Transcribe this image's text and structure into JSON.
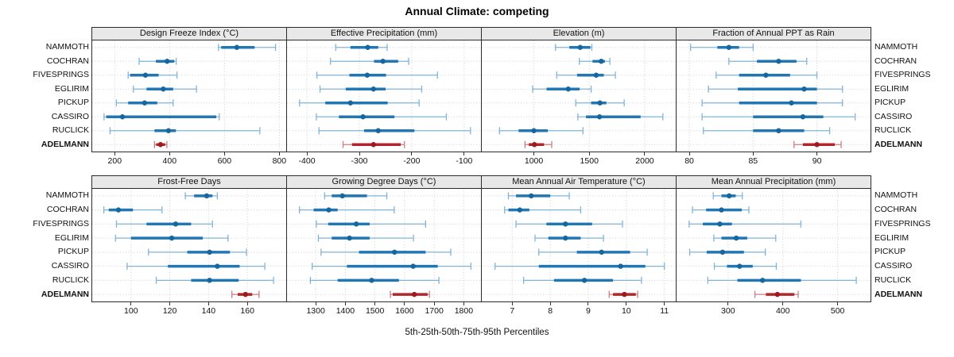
{
  "title": "Annual Climate: competing",
  "xlabel": "5th-25th-50th-75th-95th Percentiles",
  "sites": [
    "NAMMOTH",
    "COCHRAN",
    "FIVESPRINGS",
    "EGLIRIM",
    "PICKUP",
    "CASSIRO",
    "RUCLICK",
    "ADELMANN"
  ],
  "highlight_site": "ADELMANN",
  "colors": {
    "median": "#15679e",
    "box": "#2077b4",
    "whisker": "#82b4d8",
    "highlight_median": "#9d1a1f",
    "highlight_box": "#b2262b",
    "highlight_whisker": "#cd7d80",
    "grid_vertical": "#cfcfcf",
    "grid_horizontal": "#c3d3de",
    "panel_border": "#2b2b2b",
    "strip_background": "#e8e8e8"
  },
  "chart_data": {
    "type": "dotplot-percentile-intervals",
    "percentile_levels": [
      5,
      25,
      50,
      75,
      95
    ],
    "grid": "dotted",
    "legend_position": "none",
    "note": "values per site are [p5,p25,p50,p75,p95]; sites ordered top-to-bottom as in sites[]",
    "panels": [
      {
        "title": "Design Freeze Index (°C)",
        "row": 0,
        "col": 0,
        "xlim": [
          118,
          825
        ],
        "ticks": [
          200,
          400,
          600,
          800
        ],
        "values": [
          [
            578,
            588,
            645,
            710,
            786
          ],
          [
            289,
            350,
            391,
            417,
            424
          ],
          [
            249,
            256,
            312,
            360,
            427
          ],
          [
            268,
            316,
            377,
            413,
            498
          ],
          [
            206,
            249,
            309,
            355,
            413
          ],
          [
            161,
            169,
            228,
            570,
            581
          ],
          [
            183,
            345,
            396,
            423,
            729
          ],
          [
            345,
            351,
            367,
            384,
            390
          ]
        ]
      },
      {
        "title": "Effective Precipitation (mm)",
        "row": 0,
        "col": 1,
        "xlim": [
          -438,
          -68
        ],
        "ticks": [
          -400,
          -300,
          -200,
          -100
        ],
        "values": [
          [
            -345,
            -317,
            -284,
            -264,
            -247
          ],
          [
            -355,
            -272,
            -255,
            -226,
            -206
          ],
          [
            -381,
            -319,
            -285,
            -249,
            -151
          ],
          [
            -375,
            -326,
            -273,
            -250,
            -181
          ],
          [
            -414,
            -365,
            -317,
            -246,
            -186
          ],
          [
            -382,
            -339,
            -293,
            -233,
            -134
          ],
          [
            -377,
            -291,
            -264,
            -195,
            -88
          ],
          [
            -331,
            -314,
            -273,
            -221,
            -214
          ]
        ]
      },
      {
        "title": "Elevation (m)",
        "row": 0,
        "col": 2,
        "xlim": [
          530,
          2280
        ],
        "ticks": [
          1000,
          1500,
          2000
        ],
        "values": [
          [
            1195,
            1320,
            1418,
            1510,
            1523
          ],
          [
            1410,
            1529,
            1608,
            1641,
            1686
          ],
          [
            1206,
            1390,
            1562,
            1631,
            1735
          ],
          [
            989,
            1115,
            1310,
            1413,
            1517
          ],
          [
            1378,
            1516,
            1596,
            1654,
            1815
          ],
          [
            1397,
            1470,
            1592,
            1963,
            2164
          ],
          [
            690,
            862,
            1000,
            1126,
            1443
          ],
          [
            920,
            954,
            1005,
            1092,
            1161
          ]
        ]
      },
      {
        "title": "Fraction of Annual PPT as Rain",
        "row": 0,
        "col": 3,
        "xlim": [
          79,
          94.2
        ],
        "ticks": [
          80,
          85,
          90
        ],
        "values": [
          [
            80.1,
            82.2,
            83.1,
            83.9,
            85.0
          ],
          [
            83.1,
            85.3,
            87.0,
            88.4,
            89.2
          ],
          [
            82.1,
            83.9,
            86.0,
            87.9,
            90.0
          ],
          [
            81.5,
            83.8,
            89.0,
            90.0,
            92.0
          ],
          [
            81.0,
            83.9,
            88.0,
            90.0,
            92.0
          ],
          [
            81.0,
            85.0,
            88.9,
            90.5,
            93.0
          ],
          [
            81.1,
            85.0,
            87.0,
            89.0,
            91.0
          ],
          [
            88.2,
            88.9,
            90.0,
            91.4,
            91.9
          ]
        ]
      },
      {
        "title": "Frost-Free Days",
        "row": 1,
        "col": 0,
        "xlim": [
          80,
          180
        ],
        "ticks": [
          100,
          120,
          140,
          160
        ],
        "values": [
          [
            128,
            132.5,
            139,
            142,
            144.5
          ],
          [
            86,
            88.5,
            93.5,
            101,
            116
          ],
          [
            92.5,
            108,
            123,
            131,
            142
          ],
          [
            92,
            100,
            121,
            137,
            150
          ],
          [
            109,
            129,
            140.5,
            151,
            159.5
          ],
          [
            98,
            119,
            144.5,
            156,
            169
          ],
          [
            113,
            131,
            140.5,
            155.5,
            173.5
          ],
          [
            152,
            155,
            159,
            162.5,
            166
          ]
        ]
      },
      {
        "title": "Growing Degree Days (°C)",
        "row": 1,
        "col": 1,
        "xlim": [
          1203,
          1858
        ],
        "ticks": [
          1300,
          1400,
          1500,
          1600,
          1700,
          1800
        ],
        "values": [
          [
            1330,
            1354,
            1390,
            1473,
            1540
          ],
          [
            1245,
            1293,
            1344,
            1374,
            1565
          ],
          [
            1302,
            1342,
            1437,
            1482,
            1671
          ],
          [
            1309,
            1354,
            1414,
            1482,
            1630
          ],
          [
            1318,
            1446,
            1566,
            1671,
            1756
          ],
          [
            1288,
            1405,
            1629,
            1712,
            1824
          ],
          [
            1282,
            1374,
            1489,
            1581,
            1716
          ],
          [
            1552,
            1560,
            1633,
            1678,
            1684
          ]
        ]
      },
      {
        "title": "Mean Annual Air Temperature (°C)",
        "row": 1,
        "col": 2,
        "xlim": [
          6.2,
          11.3
        ],
        "ticks": [
          7,
          8,
          9,
          10,
          11
        ],
        "values": [
          [
            6.9,
            7.1,
            7.5,
            8.0,
            8.5
          ],
          [
            6.8,
            6.9,
            7.2,
            7.45,
            8.8
          ],
          [
            7.1,
            7.9,
            8.4,
            9.1,
            9.9
          ],
          [
            7.6,
            7.95,
            8.4,
            8.8,
            9.4
          ],
          [
            7.7,
            8.7,
            9.35,
            10.1,
            10.55
          ],
          [
            6.55,
            7.7,
            9.85,
            10.5,
            11.0
          ],
          [
            7.3,
            8.1,
            8.9,
            9.65,
            10.4
          ],
          [
            9.55,
            9.65,
            9.95,
            10.25,
            10.3
          ]
        ]
      },
      {
        "title": "Mean Annual Precipitation (mm)",
        "row": 1,
        "col": 3,
        "xlim": [
          206,
          560
        ],
        "ticks": [
          300,
          400,
          500
        ],
        "values": [
          [
            273,
            288,
            302,
            314,
            326
          ],
          [
            235,
            260,
            288,
            325,
            338
          ],
          [
            229,
            254,
            285,
            307,
            433
          ],
          [
            274,
            288,
            315,
            335,
            387
          ],
          [
            230,
            261,
            290,
            329,
            368
          ],
          [
            275,
            298,
            321,
            345,
            388
          ],
          [
            263,
            317,
            363,
            433,
            534
          ],
          [
            349,
            369,
            390,
            421,
            428
          ]
        ]
      }
    ]
  }
}
